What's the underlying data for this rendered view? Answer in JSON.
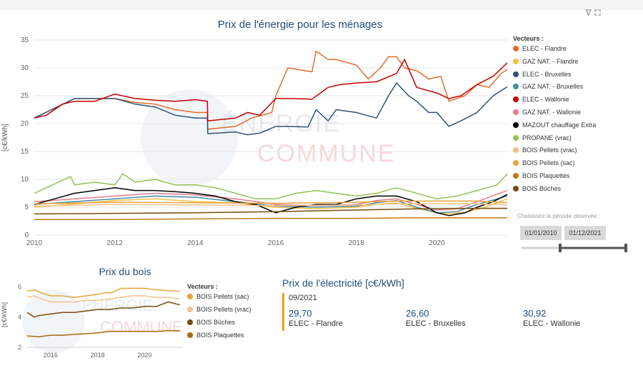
{
  "toolbar": {
    "filter_icon": "filter-icon",
    "expand_icon": "expand-icon"
  },
  "watermark": {
    "line1": "ÉNERGIE",
    "line2": "COMMUNE"
  },
  "main_legend_title": "Vecteurs :",
  "wood_legend_title": "Vecteurs :",
  "slider": {
    "label": "Choisissez la période observée :",
    "start": "01/01/2010",
    "end": "01/12/2021"
  },
  "elec_card": {
    "title": "Prix de l'électricité [c€/kWh]",
    "date": "09/2021",
    "items": [
      {
        "value": "29,70",
        "label": "ELEC - Flandre"
      },
      {
        "value": "26,60",
        "label": "ELEC - Bruxelles"
      },
      {
        "value": "30,92",
        "label": "ELEC - Wallonie"
      }
    ]
  },
  "chart_data": [
    {
      "type": "line",
      "title": "Prix de l'énergie pour les ménages",
      "xlabel": "",
      "ylabel": "[c€/kWh]",
      "xlim": [
        2010,
        2021.75
      ],
      "ylim": [
        0,
        35
      ],
      "xticks": [
        2010,
        2012,
        2014,
        2016,
        2018,
        2020
      ],
      "yticks": [
        0,
        5,
        10,
        15,
        20,
        25,
        30,
        35
      ],
      "grid": true,
      "legend_position": "right",
      "series": [
        {
          "name": "ELEC - Flandre",
          "color": "#e46c2d",
          "x": [
            2010,
            2011,
            2012,
            2012.5,
            2013,
            2013.5,
            2014,
            2014.3,
            2014.31,
            2015,
            2015.4,
            2015.9,
            2016.0,
            2016.3,
            2016.9,
            2017,
            2017.3,
            2017.5,
            2018,
            2018.3,
            2018.6,
            2018.8,
            2019.0,
            2019.2,
            2019.5,
            2019.8,
            2020.1,
            2020.3,
            2020.7,
            2021,
            2021.3,
            2021.6,
            2021.75
          ],
          "y": [
            21,
            24.5,
            24.5,
            23.8,
            23.5,
            22.5,
            22,
            22,
            19,
            19.5,
            21,
            22,
            25,
            30,
            29.3,
            33,
            31.5,
            31.5,
            30.5,
            28,
            30,
            32,
            32,
            30,
            29.5,
            28,
            28.5,
            24,
            25,
            27,
            26.5,
            29,
            29.7
          ]
        },
        {
          "name": "GAZ NAT. - Flandre",
          "color": "#f5c242",
          "x": [
            2010,
            2012,
            2013,
            2014,
            2015,
            2016,
            2017,
            2018,
            2018.5,
            2019,
            2019.5,
            2020,
            2020.3,
            2020.8,
            2021.2,
            2021.75
          ],
          "y": [
            5,
            6.2,
            6.5,
            6,
            5.8,
            5,
            4.7,
            5,
            5.5,
            5.8,
            4.8,
            4,
            3.8,
            4.2,
            5,
            6.5
          ]
        },
        {
          "name": "ELEC - Bruxelles",
          "color": "#2e5277",
          "x": [
            2010,
            2011,
            2012,
            2012.5,
            2013,
            2013.5,
            2014,
            2014.3,
            2014.31,
            2015,
            2015.3,
            2015.6,
            2016,
            2016.3,
            2016.8,
            2017,
            2017.3,
            2017.5,
            2018,
            2018.5,
            2018.8,
            2019,
            2019.3,
            2019.5,
            2019.8,
            2020,
            2020.3,
            2020.6,
            2021,
            2021.4,
            2021.75
          ],
          "y": [
            21,
            24.5,
            24.5,
            23.5,
            23,
            21.5,
            21,
            21,
            18.2,
            18.5,
            18,
            18.3,
            19.5,
            19.5,
            19.4,
            22.5,
            20.5,
            22.5,
            22,
            21,
            25,
            27.3,
            25,
            24,
            22,
            22,
            19.5,
            20.5,
            22,
            25,
            26.6
          ]
        },
        {
          "name": "GAZ NAT. - Bruxelles",
          "color": "#4a8ba6",
          "x": [
            2010,
            2012,
            2013,
            2014,
            2015,
            2016,
            2017,
            2018,
            2018.5,
            2019,
            2019.5,
            2020,
            2020.5,
            2021,
            2021.75
          ],
          "y": [
            5.5,
            6.5,
            7,
            6.8,
            6,
            5.2,
            5,
            5.2,
            5.8,
            6.2,
            5,
            4,
            4.2,
            5.5,
            7
          ]
        },
        {
          "name": "ELEC - Wallonie",
          "color": "#c00000",
          "x": [
            2010,
            2010.3,
            2010.7,
            2011,
            2011.5,
            2012,
            2012.5,
            2013,
            2013.5,
            2014,
            2014.3,
            2014.31,
            2015,
            2015.3,
            2015.6,
            2016,
            2016.4,
            2016.9,
            2017.3,
            2017.6,
            2018,
            2018.5,
            2019,
            2019.2,
            2019.5,
            2020,
            2020.3,
            2020.6,
            2021,
            2021.4,
            2021.75
          ],
          "y": [
            21,
            21.5,
            23.5,
            24,
            24,
            25.3,
            24.5,
            24.2,
            24,
            24.3,
            24,
            20.5,
            21,
            22,
            21.5,
            24.5,
            24.5,
            24.4,
            26.5,
            27,
            27.3,
            27.5,
            29,
            31.5,
            26.5,
            25.5,
            24.5,
            25,
            27,
            28.5,
            30.9
          ]
        },
        {
          "name": "GAZ NAT. - Wallonie",
          "color": "#e37b8c",
          "x": [
            2010,
            2012,
            2013,
            2014,
            2015,
            2016,
            2017,
            2018,
            2018.5,
            2019,
            2019.5,
            2020,
            2020.5,
            2021,
            2021.75
          ],
          "y": [
            6,
            7,
            7.5,
            7.2,
            6.5,
            5.5,
            5.3,
            5.5,
            6.2,
            6.5,
            5.5,
            4.5,
            4.7,
            6,
            8
          ]
        },
        {
          "name": "MAZOUT chauffage Extra",
          "color": "#000000",
          "x": [
            2010,
            2010.5,
            2011,
            2011.5,
            2012,
            2012.5,
            2013,
            2013.5,
            2014,
            2014.5,
            2015,
            2015.5,
            2016,
            2016.5,
            2017,
            2017.5,
            2018,
            2018.5,
            2019,
            2019.5,
            2020,
            2020.3,
            2020.7,
            2021,
            2021.4,
            2021.75
          ],
          "y": [
            5.5,
            6.5,
            7.5,
            8,
            8.5,
            8,
            8,
            7.8,
            7.5,
            7,
            6,
            5.5,
            4,
            5,
            5.5,
            5.5,
            6.5,
            7,
            7,
            6,
            4,
            3.5,
            4,
            5,
            6,
            7.3
          ]
        },
        {
          "name": "PROPANE (vrac)",
          "color": "#92c353",
          "x": [
            2010,
            2010.3,
            2010.9,
            2011,
            2011.5,
            2012,
            2012.2,
            2012.5,
            2013,
            2013.5,
            2014,
            2014.5,
            2015,
            2015.5,
            2016,
            2016.5,
            2017,
            2017.5,
            2018,
            2018.5,
            2019,
            2019.5,
            2020,
            2020.5,
            2021,
            2021.5,
            2021.75
          ],
          "y": [
            7.5,
            8.5,
            10.5,
            9,
            9.5,
            9,
            11,
            9.5,
            10,
            9,
            9,
            8.5,
            7.5,
            6.5,
            6.5,
            7.5,
            8,
            7.5,
            7,
            7.5,
            8.5,
            7.5,
            6.5,
            7,
            8,
            9,
            11
          ]
        },
        {
          "name": "BOIS Pellets (vrac)",
          "color": "#f4c08a",
          "x": [
            2010,
            2012,
            2014,
            2016,
            2018,
            2019,
            2020,
            2021,
            2021.75
          ],
          "y": [
            5.2,
            5.5,
            5.4,
            5.3,
            5.4,
            5.6,
            5.6,
            5.6,
            5.4
          ]
        },
        {
          "name": "BOIS Pellets (sac)",
          "color": "#e8a33c",
          "x": [
            2010,
            2012,
            2014,
            2016,
            2018,
            2019,
            2020,
            2021,
            2021.75
          ],
          "y": [
            5.6,
            5.9,
            5.8,
            5.7,
            5.9,
            6.1,
            6.1,
            6.1,
            5.8
          ]
        },
        {
          "name": "BOIS Plaquettes",
          "color": "#c07a17",
          "x": [
            2010,
            2012,
            2014,
            2016,
            2018,
            2019.5,
            2021,
            2021.75
          ],
          "y": [
            2.8,
            2.8,
            2.9,
            3,
            3,
            3.1,
            3.1,
            3.1
          ]
        },
        {
          "name": "BOIS Bûches",
          "color": "#7a4a0e",
          "x": [
            2010,
            2012,
            2014,
            2016,
            2018,
            2019.5,
            2021,
            2021.75
          ],
          "y": [
            3.8,
            3.9,
            4,
            4.2,
            4.5,
            4.7,
            4.8,
            4.8
          ]
        }
      ]
    },
    {
      "type": "line",
      "title": "Prix du bois",
      "xlabel": "",
      "ylabel": "[c€/kWh]",
      "xlim": [
        2015,
        2021.6
      ],
      "ylim": [
        2,
        6.3
      ],
      "xticks": [
        2016,
        2018,
        2020
      ],
      "yticks": [
        2,
        4,
        6
      ],
      "grid": false,
      "legend_position": "right",
      "series": [
        {
          "name": "BOIS Pellets (sac)",
          "color": "#e8a33c",
          "x": [
            2015,
            2015.3,
            2015.6,
            2016,
            2016.5,
            2017,
            2017.5,
            2018,
            2018.3,
            2018.6,
            2019,
            2019.5,
            2020,
            2020.5,
            2021,
            2021.5
          ],
          "y": [
            5.7,
            5.8,
            5.6,
            5.4,
            5.4,
            5.3,
            5.4,
            5.5,
            5.6,
            5.6,
            5.9,
            5.9,
            5.9,
            5.8,
            5.75,
            5.7
          ]
        },
        {
          "name": "BOIS Pellets (vrac)",
          "color": "#f4c08a",
          "x": [
            2015,
            2015.3,
            2015.6,
            2016,
            2016.5,
            2017,
            2017.5,
            2018,
            2018.5,
            2019,
            2019.5,
            2020,
            2020.5,
            2021,
            2021.5
          ],
          "y": [
            5.3,
            5.4,
            5.2,
            5.0,
            5.0,
            5.0,
            5.1,
            5.1,
            5.2,
            5.3,
            5.4,
            5.4,
            5.3,
            5.3,
            5.2
          ]
        },
        {
          "name": "BOIS Bûches",
          "color": "#7a4a0e",
          "x": [
            2015,
            2015.3,
            2015.5,
            2016,
            2016.5,
            2017,
            2017.5,
            2018,
            2018.5,
            2019,
            2019.5,
            2020,
            2020.5,
            2021,
            2021.5
          ],
          "y": [
            4.3,
            4.0,
            4.1,
            4.2,
            4.3,
            4.3,
            4.4,
            4.5,
            4.5,
            4.6,
            4.6,
            4.7,
            4.7,
            5.0,
            4.8
          ]
        },
        {
          "name": "BOIS Plaquettes",
          "color": "#a86814",
          "x": [
            2015,
            2015.5,
            2016,
            2016.5,
            2017,
            2017.5,
            2018,
            2018.5,
            2019,
            2019.5,
            2020,
            2020.5,
            2021,
            2021.5
          ],
          "y": [
            2.75,
            2.7,
            2.8,
            2.8,
            2.85,
            2.9,
            2.95,
            3.05,
            3.05,
            3.05,
            3.05,
            3.05,
            3.1,
            3.1
          ]
        }
      ]
    }
  ]
}
